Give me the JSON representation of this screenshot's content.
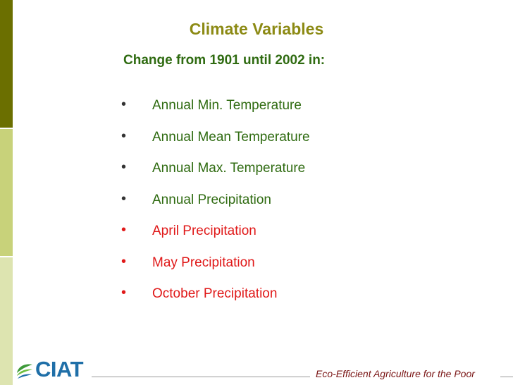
{
  "slide": {
    "title": "Climate Variables",
    "subtitle": "Change from 1901 until 2002 in:",
    "bullet_char": "•",
    "items": [
      {
        "label": "Annual Min. Temperature",
        "color": "#2f6b11"
      },
      {
        "label": "Annual Mean Temperature",
        "color": "#2f6b11"
      },
      {
        "label": "Annual Max. Temperature",
        "color": "#2f6b11"
      },
      {
        "label": "Annual Precipitation",
        "color": "#2f6b11"
      },
      {
        "label": "April Precipitation",
        "color": "#e01919"
      },
      {
        "label": "May Precipitation",
        "color": "#e01919"
      },
      {
        "label": "October Precipitation",
        "color": "#e01919"
      }
    ]
  },
  "footer": {
    "logo_text": "CIAT",
    "logo_icon": "leaf-icon",
    "tagline": "Eco-Efficient Agriculture for the Poor"
  },
  "colors": {
    "strip_dark": "#6b6f00",
    "strip_mid": "#c8d27a",
    "strip_light": "#dde4b0",
    "title": "#8c8a14",
    "logo_blue": "#1f6fa8"
  }
}
